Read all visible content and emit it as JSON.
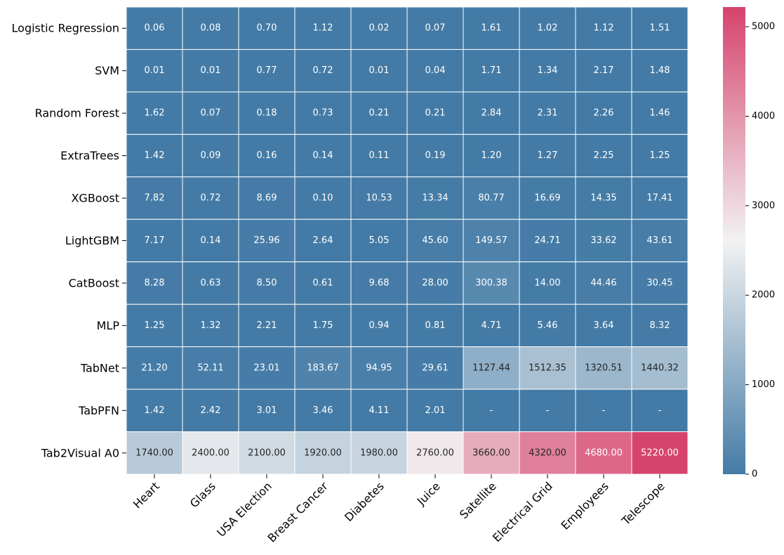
{
  "chart_data": {
    "type": "heatmap",
    "title": "",
    "xlabel": "",
    "ylabel": "",
    "rows": [
      "Logistic Regression",
      "SVM",
      "Random Forest",
      "ExtraTrees",
      "XGBoost",
      "LightGBM",
      "CatBoost",
      "MLP",
      "TabNet",
      "TabPFN",
      "Tab2Visual A0"
    ],
    "columns": [
      "Heart",
      "Glass",
      "USA Election",
      "Breast Cancer",
      "Diabetes",
      "Juice",
      "Satellite",
      "Electrical Grid",
      "Employees",
      "Telescope"
    ],
    "values": [
      [
        0.06,
        0.08,
        0.7,
        1.12,
        0.02,
        0.07,
        1.61,
        1.02,
        1.12,
        1.51
      ],
      [
        0.01,
        0.01,
        0.77,
        0.72,
        0.01,
        0.04,
        1.71,
        1.34,
        2.17,
        1.48
      ],
      [
        1.62,
        0.07,
        0.18,
        0.73,
        0.21,
        0.21,
        2.84,
        2.31,
        2.26,
        1.46
      ],
      [
        1.42,
        0.09,
        0.16,
        0.14,
        0.11,
        0.19,
        1.2,
        1.27,
        2.25,
        1.25
      ],
      [
        7.82,
        0.72,
        8.69,
        0.1,
        10.53,
        13.34,
        80.77,
        16.69,
        14.35,
        17.41
      ],
      [
        7.17,
        0.14,
        25.96,
        2.64,
        5.05,
        45.6,
        149.57,
        24.71,
        33.62,
        43.61
      ],
      [
        8.28,
        0.63,
        8.5,
        0.61,
        9.68,
        28.0,
        300.38,
        14.0,
        44.46,
        30.45
      ],
      [
        1.25,
        1.32,
        2.21,
        1.75,
        0.94,
        0.81,
        4.71,
        5.46,
        3.64,
        8.32
      ],
      [
        21.2,
        52.11,
        23.01,
        183.67,
        94.95,
        29.61,
        1127.44,
        1512.35,
        1320.51,
        1440.32
      ],
      [
        1.42,
        2.42,
        3.01,
        3.46,
        4.11,
        2.01,
        null,
        null,
        null,
        null
      ],
      [
        1740.0,
        2400.0,
        2100.0,
        1920.0,
        1980.0,
        2760.0,
        3660.0,
        4320.0,
        4680.0,
        5220.0
      ]
    ],
    "missing_label": "-",
    "value_format": "2 decimals",
    "colorbar": {
      "min": 0,
      "max": 5220,
      "ticks": [
        0,
        1000,
        2000,
        3000,
        4000,
        5000
      ],
      "colors": {
        "low": "#447ba6",
        "mid": "#f2f2f2",
        "high": "#d6436d"
      }
    }
  }
}
